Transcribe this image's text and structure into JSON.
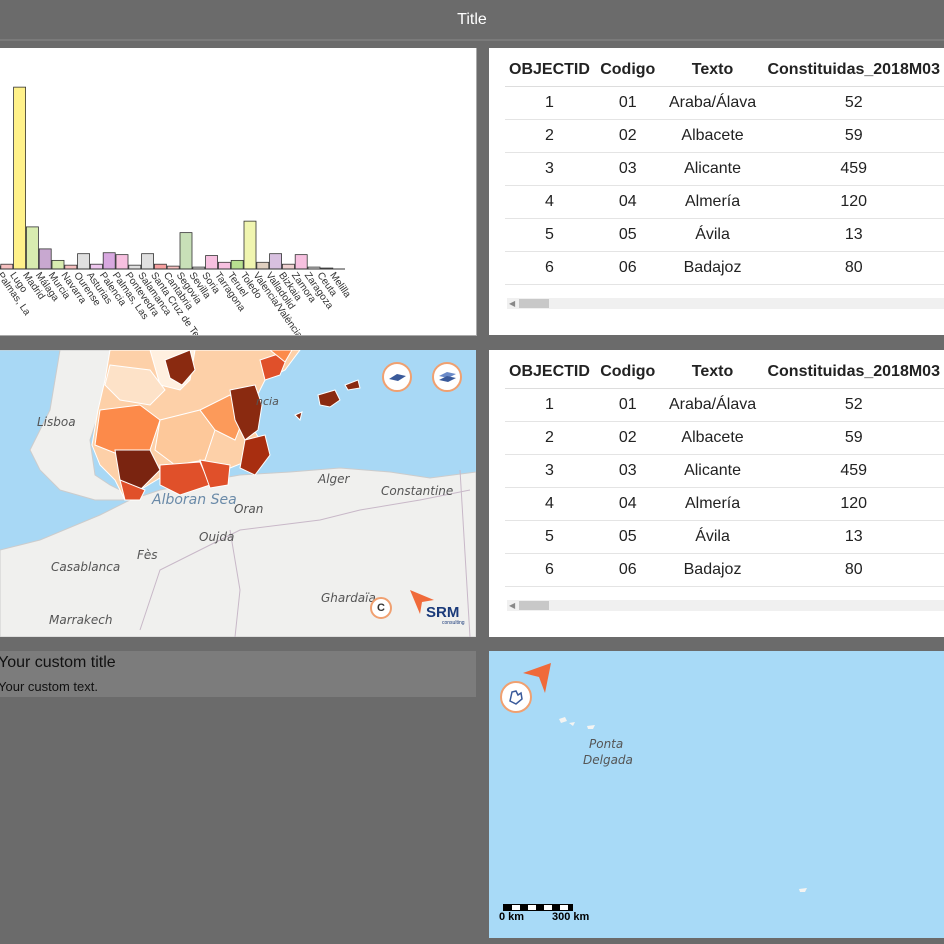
{
  "header": {
    "title": "Title"
  },
  "chart_data": {
    "type": "bar",
    "categories": [
      "Palmas, La",
      "Lugo",
      "Madrid",
      "Málaga",
      "Murcia",
      "Navarra",
      "Ourense",
      "Asturias",
      "Palencia",
      "Palmas, Las",
      "Pontevedra",
      "Salamanca",
      "Santa Cruz de Tenerife",
      "Cantabria",
      "Segovia",
      "Sevilla",
      "Soria",
      "Tarragona",
      "Teruel",
      "Toledo",
      "Valencia/València",
      "Valladolid",
      "Bizkaia",
      "Zamora",
      "Zaragoza",
      "Ceuta",
      "Melilla"
    ],
    "values": [
      3,
      5,
      190,
      44,
      21,
      9,
      4,
      16,
      5,
      17,
      15,
      4,
      16,
      5,
      3,
      38,
      2,
      14,
      7,
      9,
      50,
      7,
      16,
      5,
      15,
      2,
      1
    ],
    "colors": [
      "#f7c0c0",
      "#f7c0c0",
      "#fff18a",
      "#d8ecb0",
      "#c8a8d0",
      "#d8ecb0",
      "#f7c0c0",
      "#e0e0e0",
      "#f0c8f0",
      "#d8a8e0",
      "#f7c0e0",
      "#e0e0e0",
      "#e0e0e0",
      "#f7a0a0",
      "#f7c0c0",
      "#c8e0b8",
      "#e0e0e0",
      "#f7c0e0",
      "#f7c0e0",
      "#b8e090",
      "#f0f5b0",
      "#e0d0c0",
      "#d8c0e0",
      "#f0d0d0",
      "#f7c0e0",
      "#e0e0e0",
      "#e0e0e0"
    ],
    "ylim": [
      0,
      210
    ]
  },
  "tables": [
    {
      "columns": [
        "OBJECTID",
        "Codigo",
        "Texto",
        "Constituidas_2018M03"
      ],
      "rows": [
        [
          "1",
          "01",
          "Araba/Álava",
          "52"
        ],
        [
          "2",
          "02",
          "Albacete",
          "59"
        ],
        [
          "3",
          "03",
          "Alicante",
          "459"
        ],
        [
          "4",
          "04",
          "Almería",
          "120"
        ],
        [
          "5",
          "05",
          "Ávila",
          "13"
        ],
        [
          "6",
          "06",
          "Badajoz",
          "80"
        ]
      ]
    },
    {
      "columns": [
        "OBJECTID",
        "Codigo",
        "Texto",
        "Constituidas_2018M03"
      ],
      "rows": [
        [
          "1",
          "01",
          "Araba/Álava",
          "52"
        ],
        [
          "2",
          "02",
          "Albacete",
          "59"
        ],
        [
          "3",
          "03",
          "Alicante",
          "459"
        ],
        [
          "4",
          "04",
          "Almería",
          "120"
        ],
        [
          "5",
          "05",
          "Ávila",
          "13"
        ],
        [
          "6",
          "06",
          "Badajoz",
          "80"
        ]
      ]
    }
  ],
  "map1": {
    "labels": [
      "Lisboa",
      "Alboran Sea",
      "Oran",
      "Alger",
      "Constantine",
      "Oujda",
      "Fès",
      "Casablanca",
      "Ghardaïa",
      "Marrakech",
      "ncia"
    ],
    "logo_text": "SRM",
    "logo_sub": "consulting",
    "copyright": "C"
  },
  "custom": {
    "title": "Your custom title",
    "text": "Your custom text."
  },
  "map2": {
    "labels": [
      "Ponta",
      "Delgada"
    ],
    "scale": [
      "0 km",
      "300 km"
    ]
  },
  "colors": {
    "accent": "#f06a3a",
    "water": "#a8d8f5",
    "land": "#f0f0ee"
  }
}
